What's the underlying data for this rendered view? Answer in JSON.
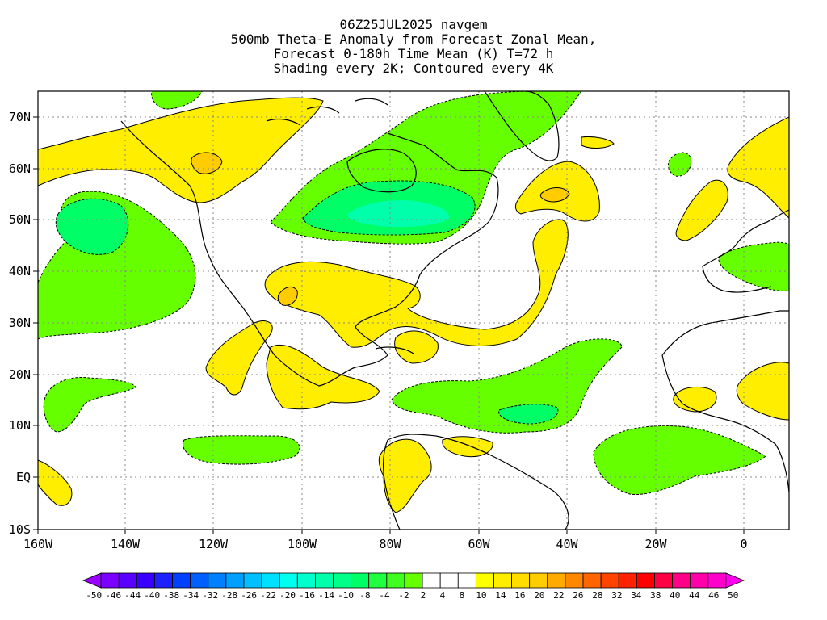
{
  "title": {
    "line1": "06Z25JUL2025 navgem",
    "line2": "500mb Theta-E Anomaly from Forecast Zonal Mean,",
    "line3": "Forecast 0-180h Time Mean (K) T=72 h",
    "line4": "Shading every 2K; Contoured every 4K"
  },
  "map": {
    "lat_labels": [
      "70N",
      "60N",
      "50N",
      "40N",
      "30N",
      "20N",
      "10N",
      "EQ",
      "10S"
    ],
    "lon_labels": [
      "160W",
      "140W",
      "120W",
      "100W",
      "80W",
      "60W",
      "40W",
      "20W",
      "0"
    ],
    "colors": {
      "warm_yellow": "#ffee00",
      "warm_gold": "#ffcc00",
      "cool_lightgreen": "#66ff00",
      "cool_green": "#00ff66",
      "cool_teal": "#00ffaa"
    }
  },
  "colorbar": {
    "labels": [
      "-50",
      "-46",
      "-44",
      "-40",
      "-38",
      "-34",
      "-32",
      "-28",
      "-26",
      "-22",
      "-20",
      "-16",
      "-14",
      "-10",
      "-8",
      "-4",
      "-2",
      "2",
      "4",
      "8",
      "10",
      "14",
      "16",
      "20",
      "22",
      "26",
      "28",
      "32",
      "34",
      "38",
      "40",
      "44",
      "46",
      "50"
    ],
    "colors": [
      "#9a00ff",
      "#7a00ff",
      "#5a00ff",
      "#3a00ff",
      "#2020ff",
      "#0040ff",
      "#0060ff",
      "#0080ff",
      "#00a0ff",
      "#00c0ff",
      "#00e0ff",
      "#00ffee",
      "#00ffcc",
      "#00ffaa",
      "#00ff88",
      "#00ff66",
      "#20ff40",
      "#40ff20",
      "#66ff00",
      "#ffffff",
      "#ffffff",
      "#ffffff",
      "#ffff00",
      "#ffee00",
      "#ffdd00",
      "#ffcc00",
      "#ffaa00",
      "#ff8800",
      "#ff6600",
      "#ff4400",
      "#ff2200",
      "#ff0000",
      "#ff0044",
      "#ff0088",
      "#ff00aa",
      "#ff00cc",
      "#ff00ee"
    ]
  }
}
